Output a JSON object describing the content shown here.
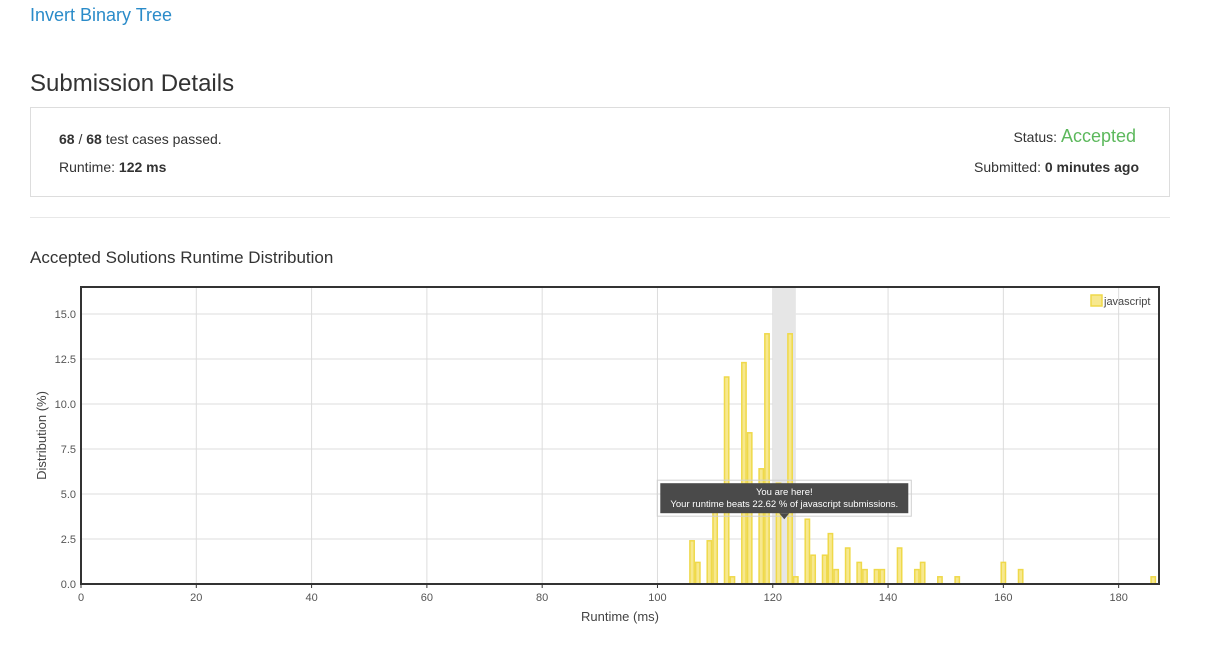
{
  "problem": {
    "title": "Invert Binary Tree"
  },
  "page": {
    "title": "Submission Details"
  },
  "summary": {
    "passed": "68",
    "separator": "/",
    "total": "68",
    "passed_suffix": "test cases passed.",
    "runtime_label": "Runtime:",
    "runtime_value": "122 ms",
    "status_label": "Status:",
    "status_value": "Accepted",
    "submitted_label": "Submitted:",
    "submitted_value": "0 minutes ago"
  },
  "section": {
    "title": "Accepted Solutions Runtime Distribution"
  },
  "colors": {
    "accent": "#2a8bc9",
    "accepted": "#5cb85c",
    "bar_fill": "#f7e88e",
    "bar_stroke": "#efd94a"
  },
  "chart_data": {
    "type": "bar",
    "xlabel": "Runtime (ms)",
    "ylabel": "Distribution (%)",
    "xlim": [
      0,
      187
    ],
    "ylim": [
      0,
      16.5
    ],
    "xticks": [
      0,
      20,
      40,
      60,
      80,
      100,
      120,
      140,
      160,
      180
    ],
    "yticks": [
      0.0,
      2.5,
      5.0,
      7.5,
      10.0,
      12.5,
      15.0
    ],
    "ytick_labels": [
      "0.0",
      "2.5",
      "5.0",
      "7.5",
      "10.0",
      "12.5",
      "15.0"
    ],
    "grid": true,
    "legend": {
      "position": "top-right",
      "entries": [
        "javascript"
      ]
    },
    "series": [
      {
        "name": "javascript",
        "x": [
          106,
          107,
          109,
          110,
          112,
          113,
          115,
          116,
          118,
          119,
          121,
          123,
          124,
          126,
          127,
          129,
          130,
          131,
          133,
          135,
          136,
          138,
          139,
          142,
          145,
          146,
          149,
          152,
          160,
          163,
          186
        ],
        "values": [
          2.4,
          1.2,
          2.4,
          4.7,
          11.5,
          0.4,
          12.3,
          8.4,
          6.4,
          13.9,
          5.6,
          13.9,
          0.4,
          3.6,
          1.6,
          1.6,
          2.8,
          0.8,
          2.0,
          1.2,
          0.8,
          0.8,
          0.8,
          2.0,
          0.8,
          1.2,
          0.4,
          0.4,
          1.2,
          0.8,
          0.4
        ]
      }
    ],
    "highlight": {
      "x_from": 120,
      "x_to": 124
    },
    "tooltip": {
      "line1": "You are here!",
      "line2": "Your runtime beats 22.62 % of javascript submissions.",
      "x": 122,
      "y": 3.6
    }
  }
}
